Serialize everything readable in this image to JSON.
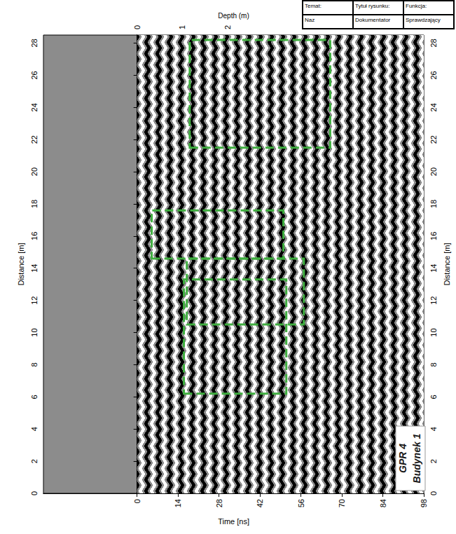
{
  "chart_data": {
    "type": "radargram",
    "xlabel": "Time [ns]",
    "ylabel": "Distance [m]",
    "x2label": "Depth (m)",
    "xlim": [
      -32,
      98
    ],
    "xticks": [
      0,
      14,
      28,
      42,
      56,
      70,
      84,
      98
    ],
    "x2lim": [
      -2.06,
      6.32
    ],
    "x2ticks": [
      0,
      1,
      2
    ],
    "ylim": [
      0,
      28.5
    ],
    "yticks": [
      0,
      2,
      4,
      6,
      8,
      10,
      12,
      14,
      16,
      18,
      20,
      22,
      24,
      26,
      28
    ],
    "signal": [
      0,
      98
    ],
    "boxes": [
      {
        "x": [
          18,
          66
        ],
        "y": [
          21.5,
          28.2
        ]
      },
      {
        "x": [
          5,
          50
        ],
        "y": [
          14.6,
          17.6
        ]
      },
      {
        "x": [
          17,
          57
        ],
        "y": [
          10.5,
          14.6
        ]
      },
      {
        "x": [
          16,
          51
        ],
        "y": [
          6.2,
          13.3
        ]
      }
    ],
    "color": "#3fae3f",
    "line_style": "dashed",
    "annotations": [
      "GPR 4",
      "Budynek 1"
    ]
  },
  "title_block": {
    "cells": [
      "Temat:",
      "Tytuł rysunku:",
      "Funkcja:",
      "Naz",
      "Dokumentator",
      "Sprawdzający"
    ]
  }
}
